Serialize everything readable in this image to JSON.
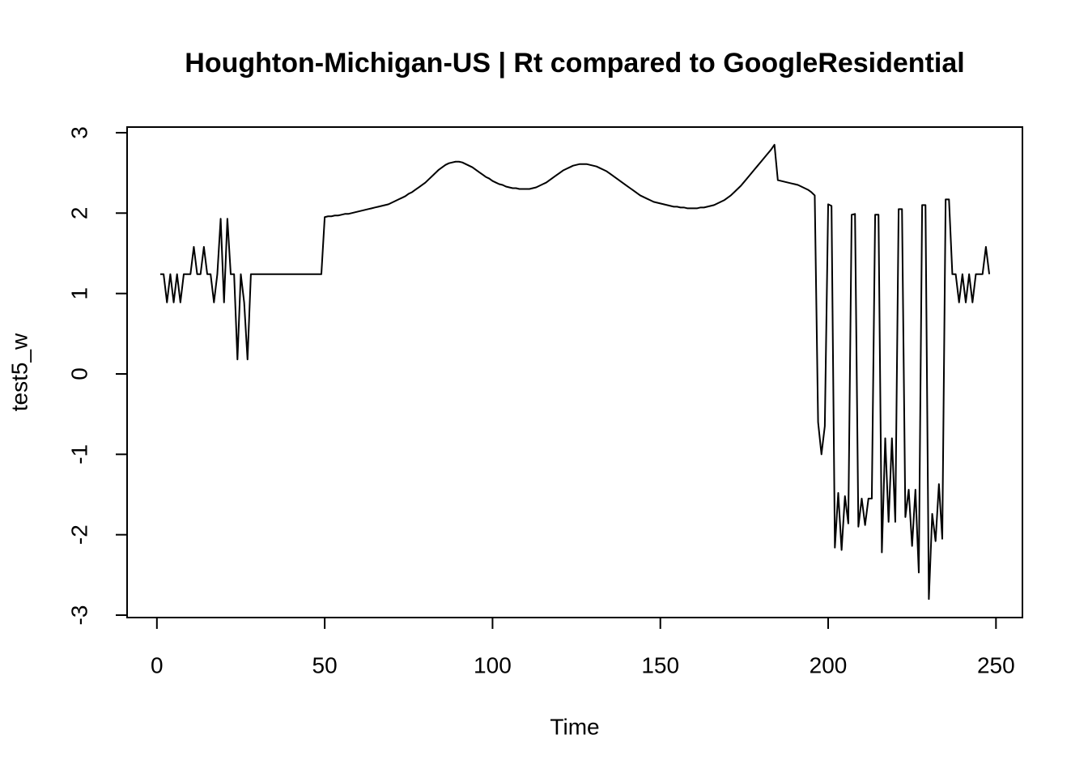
{
  "chart_data": {
    "type": "line",
    "title": "Houghton-Michigan-US | Rt compared to GoogleResidential",
    "x_label": "Time",
    "y_label": "test5_w",
    "color": "#000000",
    "xlim": [
      -8.88,
      257.88
    ],
    "ylim": [
      -3.03,
      3.07
    ],
    "xticks": [
      0,
      50,
      100,
      150,
      200,
      250
    ],
    "yticks": [
      -3,
      -2,
      -1,
      0,
      1,
      2,
      3
    ],
    "x": [
      1,
      2,
      3,
      4,
      5,
      6,
      7,
      8,
      9,
      10,
      11,
      12,
      13,
      14,
      15,
      16,
      17,
      18,
      19,
      20,
      21,
      22,
      23,
      24,
      25,
      26,
      27,
      28,
      29,
      30,
      31,
      32,
      33,
      34,
      35,
      36,
      37,
      38,
      39,
      40,
      41,
      42,
      43,
      44,
      45,
      46,
      47,
      48,
      49,
      50,
      51,
      52,
      53,
      54,
      55,
      56,
      57,
      58,
      59,
      60,
      61,
      62,
      63,
      64,
      65,
      66,
      67,
      68,
      69,
      70,
      71,
      72,
      73,
      74,
      75,
      76,
      77,
      78,
      79,
      80,
      81,
      82,
      83,
      84,
      85,
      86,
      87,
      88,
      89,
      90,
      91,
      92,
      93,
      94,
      95,
      96,
      97,
      98,
      99,
      100,
      101,
      102,
      103,
      104,
      105,
      106,
      107,
      108,
      109,
      110,
      111,
      112,
      113,
      114,
      115,
      116,
      117,
      118,
      119,
      120,
      121,
      122,
      123,
      124,
      125,
      126,
      127,
      128,
      129,
      130,
      131,
      132,
      133,
      134,
      135,
      136,
      137,
      138,
      139,
      140,
      141,
      142,
      143,
      144,
      145,
      146,
      147,
      148,
      149,
      150,
      151,
      152,
      153,
      154,
      155,
      156,
      157,
      158,
      159,
      160,
      161,
      162,
      163,
      164,
      165,
      166,
      167,
      168,
      169,
      170,
      171,
      172,
      173,
      174,
      175,
      176,
      177,
      178,
      179,
      180,
      181,
      182,
      183,
      184,
      185,
      186,
      187,
      188,
      189,
      190,
      191,
      192,
      193,
      194,
      195,
      196,
      197,
      198,
      199,
      200,
      201,
      202,
      203,
      204,
      205,
      206,
      207,
      208,
      209,
      210,
      211,
      212,
      213,
      214,
      215,
      216,
      217,
      218,
      219,
      220,
      221,
      222,
      223,
      224,
      225,
      226,
      227,
      228,
      229,
      230,
      231,
      232,
      233,
      234,
      235,
      236,
      237,
      238,
      239,
      240,
      241,
      242,
      243,
      244,
      245,
      246,
      247,
      248
    ],
    "values": [
      1.24,
      1.24,
      0.89,
      1.24,
      0.89,
      1.24,
      0.89,
      1.24,
      1.24,
      1.24,
      1.58,
      1.24,
      1.24,
      1.58,
      1.24,
      1.24,
      0.89,
      1.24,
      1.93,
      0.89,
      1.93,
      1.24,
      1.24,
      0.18,
      1.24,
      0.89,
      0.18,
      1.24,
      1.24,
      1.24,
      1.24,
      1.24,
      1.24,
      1.24,
      1.24,
      1.24,
      1.24,
      1.24,
      1.24,
      1.24,
      1.24,
      1.24,
      1.24,
      1.24,
      1.24,
      1.24,
      1.24,
      1.24,
      1.24,
      1.95,
      1.96,
      1.96,
      1.97,
      1.97,
      1.98,
      1.99,
      1.99,
      2.0,
      2.01,
      2.02,
      2.03,
      2.04,
      2.05,
      2.06,
      2.07,
      2.08,
      2.09,
      2.1,
      2.11,
      2.13,
      2.15,
      2.17,
      2.19,
      2.21,
      2.24,
      2.26,
      2.29,
      2.32,
      2.35,
      2.38,
      2.42,
      2.46,
      2.5,
      2.54,
      2.57,
      2.6,
      2.62,
      2.63,
      2.64,
      2.64,
      2.63,
      2.61,
      2.59,
      2.57,
      2.54,
      2.51,
      2.48,
      2.45,
      2.43,
      2.4,
      2.38,
      2.36,
      2.35,
      2.33,
      2.32,
      2.31,
      2.31,
      2.3,
      2.3,
      2.3,
      2.3,
      2.31,
      2.32,
      2.34,
      2.36,
      2.38,
      2.41,
      2.44,
      2.47,
      2.5,
      2.53,
      2.55,
      2.57,
      2.59,
      2.6,
      2.61,
      2.61,
      2.61,
      2.6,
      2.59,
      2.58,
      2.56,
      2.54,
      2.52,
      2.49,
      2.46,
      2.43,
      2.4,
      2.37,
      2.34,
      2.31,
      2.28,
      2.25,
      2.22,
      2.2,
      2.18,
      2.16,
      2.14,
      2.13,
      2.12,
      2.11,
      2.1,
      2.09,
      2.08,
      2.08,
      2.07,
      2.07,
      2.06,
      2.06,
      2.06,
      2.06,
      2.07,
      2.07,
      2.08,
      2.09,
      2.1,
      2.12,
      2.14,
      2.16,
      2.19,
      2.22,
      2.26,
      2.3,
      2.34,
      2.39,
      2.44,
      2.49,
      2.54,
      2.59,
      2.64,
      2.69,
      2.74,
      2.79,
      2.85,
      2.41,
      2.4,
      2.39,
      2.38,
      2.37,
      2.36,
      2.35,
      2.33,
      2.31,
      2.29,
      2.26,
      2.22,
      -0.6,
      -1.0,
      -0.65,
      2.11,
      2.09,
      -2.16,
      -1.48,
      -2.19,
      -1.52,
      -1.86,
      1.98,
      1.99,
      -1.9,
      -1.55,
      -1.88,
      -1.55,
      -1.55,
      1.98,
      1.98,
      -2.22,
      -0.8,
      -1.84,
      -0.8,
      -1.84,
      2.05,
      2.05,
      -1.78,
      -1.44,
      -2.14,
      -1.44,
      -2.47,
      2.1,
      2.1,
      -2.8,
      -1.74,
      -2.08,
      -1.37,
      -2.05,
      2.17,
      2.17,
      1.24,
      1.24,
      0.89,
      1.24,
      0.89,
      1.24,
      0.89,
      1.24,
      1.24,
      1.24,
      1.58,
      1.24
    ]
  }
}
